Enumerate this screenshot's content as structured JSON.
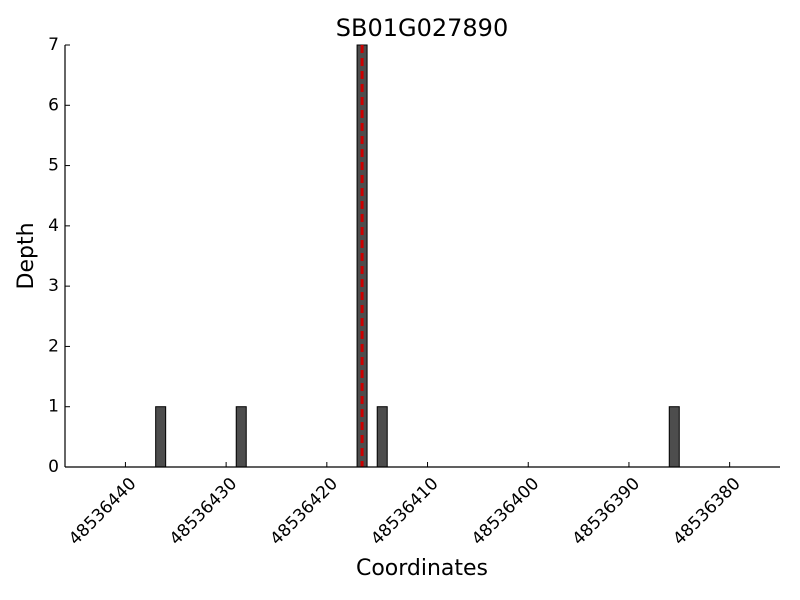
{
  "chart_data": {
    "type": "bar",
    "title": "SB01G027890",
    "x_label": "Coordinates",
    "y_label": "Depth",
    "x": [
      48536436.5,
      48536428.5,
      48536416.5,
      48536414.5,
      48536385.5
    ],
    "values": [
      1,
      1,
      7,
      1,
      1
    ],
    "color": "#4d4d4d",
    "xlim": [
      48536446,
      48536375
    ],
    "xticks": [
      48536440,
      48536430,
      48536420,
      48536410,
      48536400,
      48536390,
      48536380
    ],
    "ylim": [
      0,
      7
    ],
    "yticks": [
      0,
      1,
      2,
      3,
      4,
      5,
      6,
      7
    ],
    "marker_line": {
      "x": 48536416.5,
      "color": "#cc0000"
    }
  }
}
